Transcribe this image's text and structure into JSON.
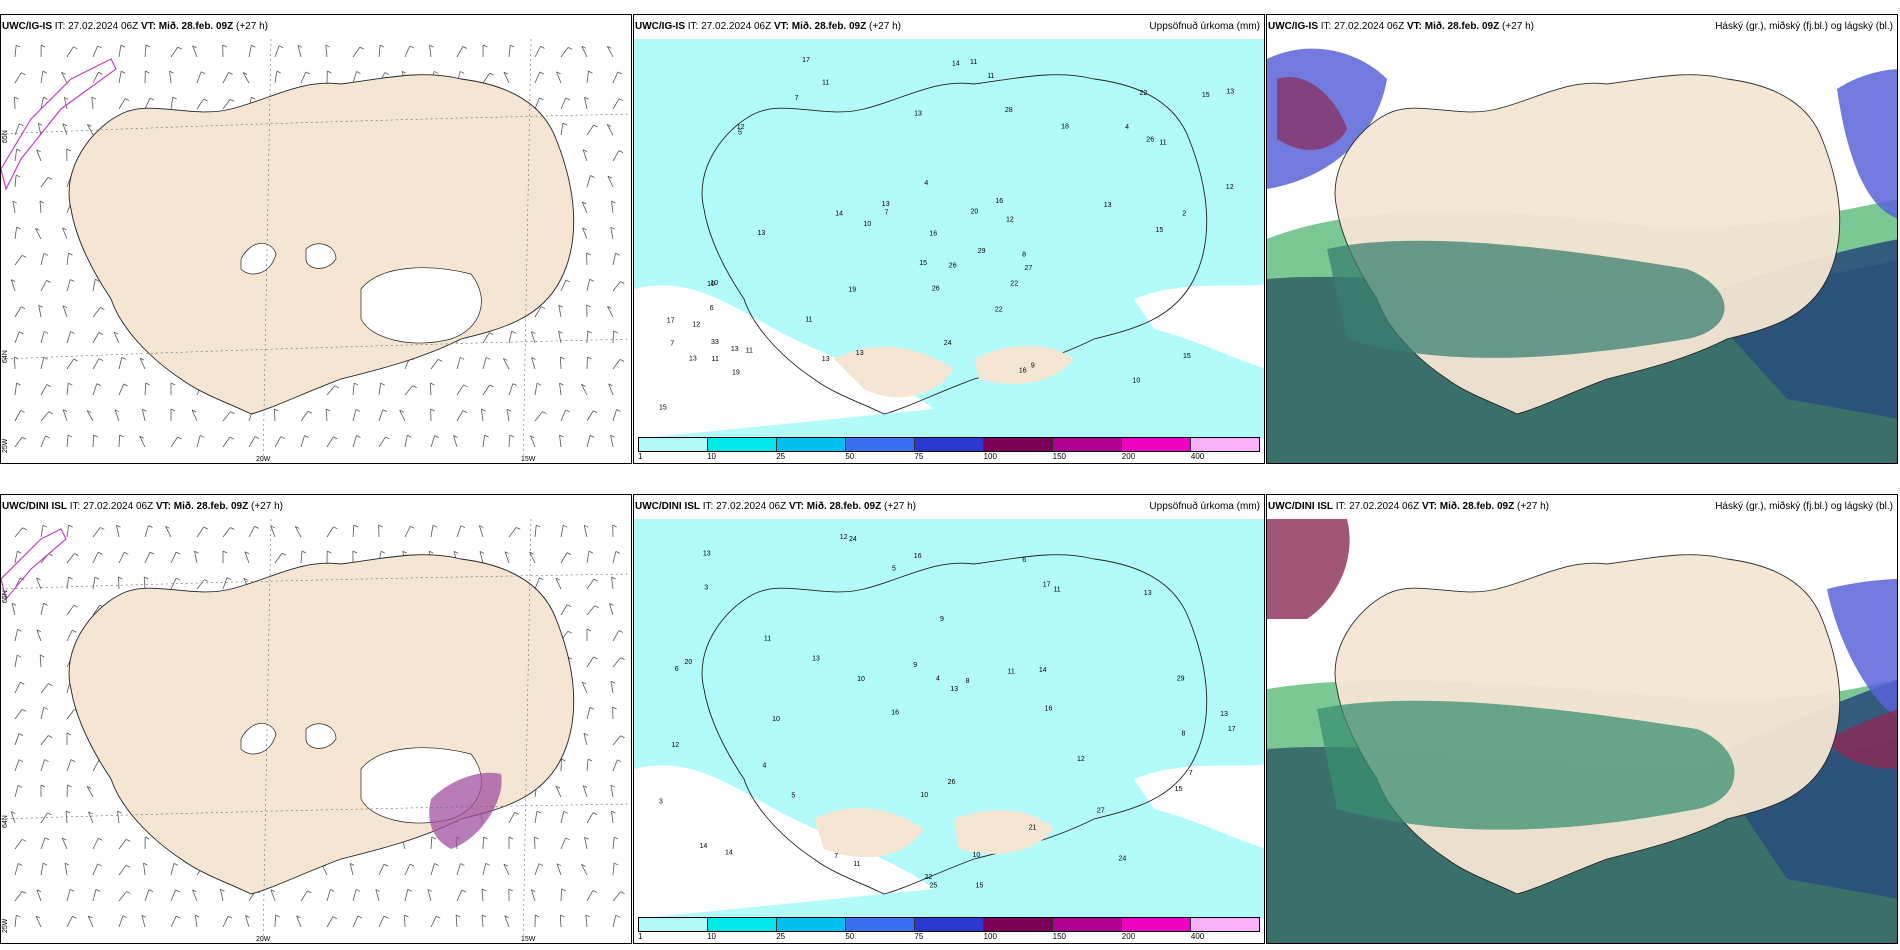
{
  "rows": [
    {
      "model": "UWC/IG-IS",
      "it_label": "IT:",
      "it_value": "27.02.2024 06Z",
      "vt_label": "VT:",
      "vt_value": "Mið. 28.feb. 09Z",
      "lead": "(+27 h)"
    },
    {
      "model": "UWC/DINI ISL",
      "it_label": "IT:",
      "it_value": "27.02.2024 06Z",
      "vt_label": "VT:",
      "vt_value": "Mið. 28.feb. 09Z",
      "lead": "(+27 h)"
    }
  ],
  "precip_title": "Uppsöfnuð úrkoma (mm)",
  "cloud_title": "Háský (gr.), miðský (fj.bl.) og lágský (bl.)",
  "lat_labels": [
    "65N",
    "64N",
    "25W"
  ],
  "lon_labels": [
    "20W",
    "15W"
  ],
  "colorbar": {
    "ticks": [
      "1",
      "10",
      "25",
      "50",
      "75",
      "100",
      "150",
      "200",
      "400"
    ],
    "colors": [
      "#b3fafa",
      "#00e8e8",
      "#00c0f0",
      "#3870f0",
      "#2a3ad0",
      "#7a0055",
      "#b00090",
      "#f000c0",
      "#f8b0f8"
    ]
  },
  "colors": {
    "land": "#f5e6d3",
    "precip_light": "#b3fafa",
    "precip_mid": "#3ae6e6",
    "cloud_high": "#6ec28a",
    "cloud_mid": "#5a63d8",
    "cloud_low": "#3a6f6a",
    "wind_barb": "#555555",
    "snow_hatch": "#c040c0"
  },
  "precip_top": [
    "7",
    "2",
    "7",
    "10",
    "6",
    "5",
    "12",
    "13",
    "19",
    "15",
    "4",
    "11",
    "12",
    "13",
    "13",
    "11",
    "19",
    "26",
    "11",
    "16",
    "10",
    "13",
    "13",
    "4",
    "15",
    "15",
    "11",
    "13",
    "10",
    "22",
    "29",
    "26",
    "24",
    "17",
    "22",
    "28",
    "26",
    "15",
    "16",
    "27",
    "33",
    "13",
    "12",
    "13",
    "15",
    "11",
    "16",
    "7",
    "8",
    "9",
    "14",
    "22",
    "18",
    "17",
    "13",
    "12",
    "14",
    "20",
    "11",
    "10",
    "11"
  ],
  "precip_bottom": [
    "6",
    "5",
    "4",
    "3",
    "10",
    "11",
    "12",
    "13",
    "14",
    "13",
    "11",
    "12",
    "9",
    "10",
    "8",
    "14",
    "16",
    "7",
    "22",
    "29",
    "26",
    "24",
    "15",
    "21",
    "16",
    "17",
    "14",
    "27",
    "13",
    "15",
    "20",
    "25",
    "17",
    "11",
    "10",
    "12",
    "13",
    "6",
    "4",
    "5",
    "7",
    "11",
    "13",
    "10",
    "8",
    "3",
    "9",
    "16",
    "24"
  ]
}
